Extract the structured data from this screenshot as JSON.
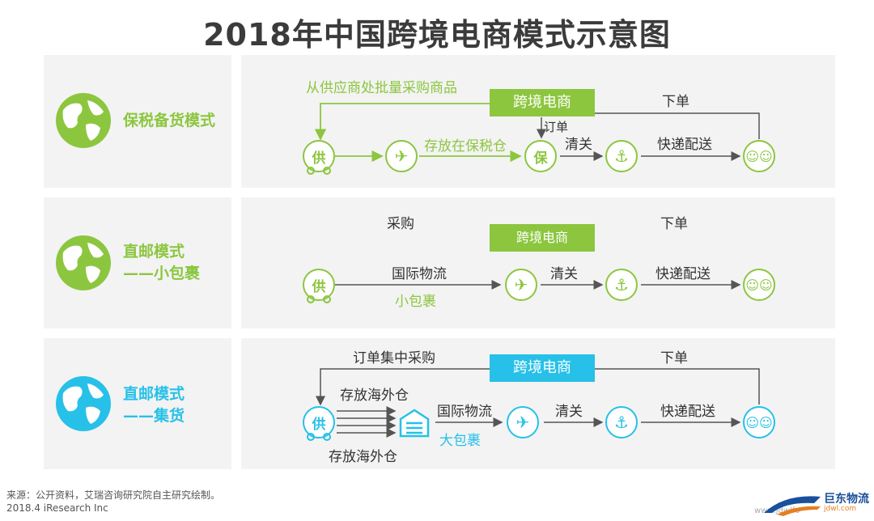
{
  "title": "2018年中国跨境电商模式示意图",
  "colors": {
    "green": "#8cc63f",
    "blue": "#27c0e8",
    "panel": "#f3f3f3",
    "line": "#555555"
  },
  "modes": [
    {
      "label_line1": "保税备货模式",
      "label_line2": "",
      "color": "green",
      "icon": "globe-icon",
      "top_text": "从供应商处批量采购商品",
      "platform": "跨境电商",
      "order_label": "订单",
      "top_right": "下单",
      "store_label": "存放在保税仓",
      "customs": "清关",
      "delivery": "快递配送",
      "supplier_char": "供",
      "bonded_char": "保"
    },
    {
      "label_line1": "直邮模式",
      "label_line2": "——小包裹",
      "color": "green",
      "icon": "globe-icon",
      "top_left": "采购",
      "platform": "跨境电商",
      "top_right": "下单",
      "logistics": "国际物流",
      "package": "小包裹",
      "customs": "清关",
      "delivery": "快递配送",
      "supplier_char": "供"
    },
    {
      "label_line1": "直邮模式",
      "label_line2": "——集货",
      "color": "blue",
      "icon": "globe-icon",
      "top_text": "订单集中采购",
      "platform": "跨境电商",
      "top_right": "下单",
      "store_top": "存放海外仓",
      "store_bottom": "存放海外仓",
      "logistics": "国际物流",
      "package": "大包裹",
      "customs": "清关",
      "delivery": "快递配送",
      "supplier_char": "供"
    }
  ],
  "footer": {
    "source": "来源：公开资料，艾瑞咨询研究院自主研究绘制。",
    "date": "2018.4 iResearch Inc"
  },
  "logo": {
    "name": "巨东物流",
    "sub": "jdwl.com"
  },
  "watermark": "www.jdwlfo"
}
